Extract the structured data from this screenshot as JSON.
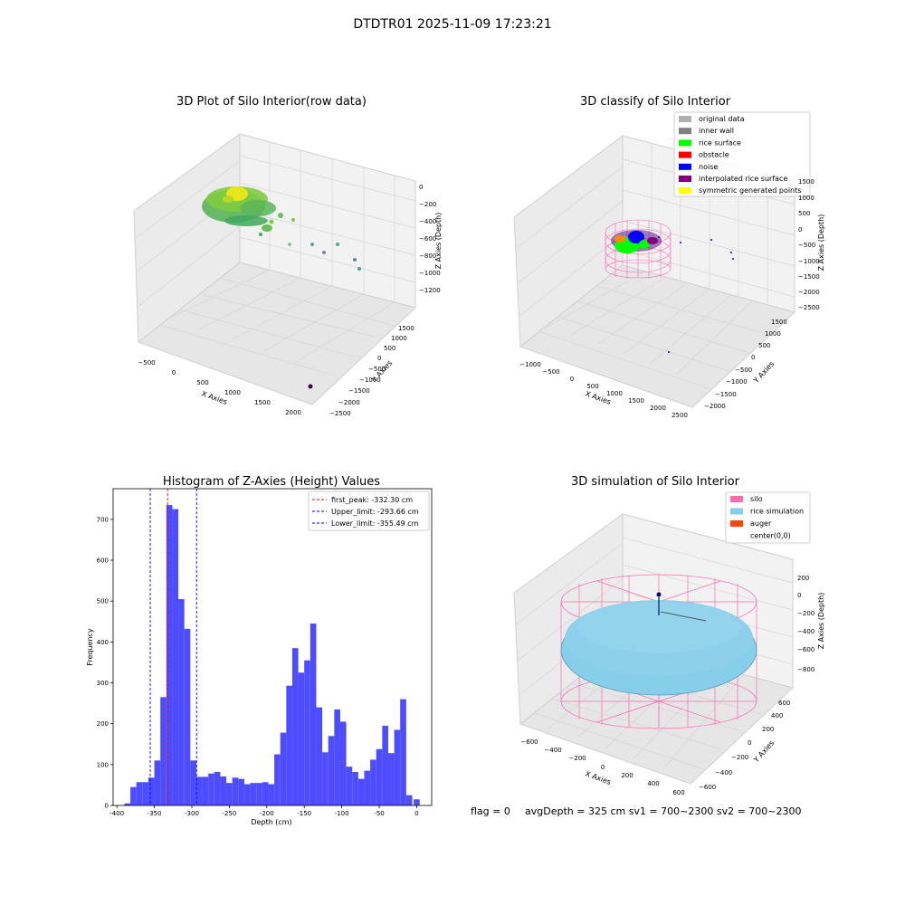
{
  "suptitle": "DTDTR01 2025-11-09 17:23:21",
  "panel1": {
    "title": "3D Plot of Silo Interior(row data)",
    "x_label": "X Axies",
    "y_label": "Y Axies",
    "z_label": "Z Axies (Depth)",
    "x_ticks": [
      "−500",
      "0",
      "500",
      "1000",
      "1500",
      "2000"
    ],
    "y_ticks": [
      "−2500",
      "−2000",
      "−1500",
      "−1000",
      "−500",
      "0",
      "500",
      "1000",
      "1500"
    ],
    "z_ticks": [
      "0",
      "−200",
      "−400",
      "−600",
      "−800",
      "−1000",
      "−1200"
    ]
  },
  "panel2": {
    "title": "3D classify of Silo Interior",
    "x_label": "X Axies",
    "y_label": "Y Axies",
    "z_label": "Z Axies (Depth)",
    "x_ticks": [
      "−1000",
      "−500",
      "0",
      "500",
      "1000",
      "1500",
      "2000",
      "2500"
    ],
    "y_ticks": [
      "−2000",
      "−1500",
      "−1000",
      "−500",
      "0",
      "500",
      "1000",
      "1500"
    ],
    "z_ticks": [
      "1500",
      "1000",
      "500",
      "0",
      "−500",
      "−1000",
      "−1500",
      "−2000",
      "−2500"
    ],
    "legend": [
      {
        "label": "original data",
        "color": "#b0b0b0"
      },
      {
        "label": "inner wall",
        "color": "#808080"
      },
      {
        "label": "rice surface",
        "color": "#00ff00"
      },
      {
        "label": "obstacle",
        "color": "#ff0000"
      },
      {
        "label": "noise",
        "color": "#0000ff"
      },
      {
        "label": "interpolated rice surface",
        "color": "#800080"
      },
      {
        "label": "symmetric generated points",
        "color": "#ffff00"
      }
    ]
  },
  "panel4": {
    "title": "3D simulation of Silo Interior",
    "x_label": "X Axies",
    "y_label": "Y Axies",
    "z_label": "Z Axies (Depth)",
    "x_ticks": [
      "−600",
      "−400",
      "−200",
      "0",
      "200",
      "400",
      "600"
    ],
    "y_ticks": [
      "−600",
      "−400",
      "−200",
      "0",
      "200",
      "400",
      "600"
    ],
    "z_ticks": [
      "200",
      "0",
      "−200",
      "−400",
      "−600",
      "−800"
    ],
    "legend": [
      {
        "label": "silo",
        "color": "#ff69b4"
      },
      {
        "label": "rice simulation",
        "color": "#87ceeb"
      },
      {
        "label": "auger",
        "color": "#ff4500"
      },
      {
        "label": "center(0,0)",
        "color": "#ffffff"
      }
    ]
  },
  "footer": {
    "flag": "flag = 0",
    "avg": "avgDepth = 325 cm  sv1 = 700~2300  sv2 = 700~2300"
  },
  "chart_data": [
    {
      "type": "bar",
      "title": "Histogram of Z-Axies (Height) Values",
      "xlabel": "Depth (cm)",
      "ylabel": "Frequency",
      "xlim": [
        -405,
        20
      ],
      "ylim": [
        0,
        775
      ],
      "x_ticks": [
        -400,
        -350,
        -300,
        -250,
        -200,
        -150,
        -100,
        -50,
        0
      ],
      "y_ticks": [
        0,
        100,
        200,
        300,
        400,
        500,
        600,
        700
      ],
      "bin_width": 8,
      "bin_left_edges": [
        -390,
        -382,
        -374,
        -366,
        -358,
        -350,
        -342,
        -334,
        -326,
        -318,
        -310,
        -302,
        -294,
        -286,
        -278,
        -270,
        -262,
        -254,
        -246,
        -238,
        -230,
        -222,
        -214,
        -206,
        -198,
        -190,
        -182,
        -174,
        -166,
        -158,
        -150,
        -142,
        -134,
        -126,
        -118,
        -110,
        -102,
        -94,
        -86,
        -78,
        -70,
        -62,
        -54,
        -46,
        -38,
        -30,
        -22,
        -14,
        -6
      ],
      "values": [
        5,
        45,
        57,
        57,
        68,
        110,
        265,
        735,
        725,
        505,
        432,
        110,
        70,
        70,
        78,
        82,
        71,
        55,
        68,
        65,
        52,
        55,
        55,
        57,
        52,
        125,
        178,
        293,
        385,
        325,
        355,
        445,
        240,
        130,
        170,
        235,
        205,
        95,
        82,
        65,
        85,
        112,
        138,
        195,
        128,
        185,
        260,
        25,
        0
      ],
      "extra_bar": {
        "x_left": -4,
        "value": 15
      },
      "bar_color": "#4d4dff",
      "vlines": [
        {
          "label": "first_peak: -332.30 cm",
          "x": -332.3,
          "color": "#ff0000"
        },
        {
          "label": "Upper_limit: -293.66 cm",
          "x": -293.66,
          "color": "#0000ff"
        },
        {
          "label": "Lower_limit: -355.49 cm",
          "x": -355.49,
          "color": "#0000ff"
        }
      ],
      "legend": "top-right"
    }
  ]
}
